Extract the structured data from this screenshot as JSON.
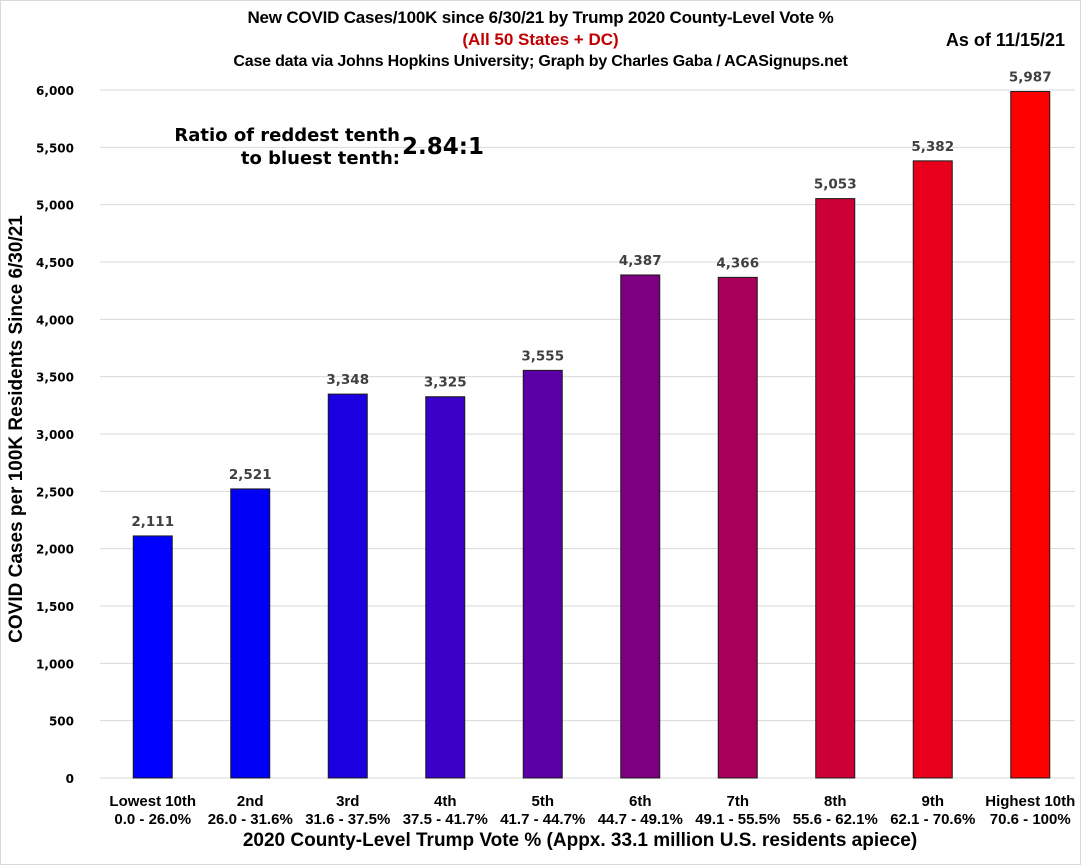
{
  "chart_data": {
    "type": "bar",
    "title": "New COVID Cases/100K since 6/30/21 by Trump 2020 County-Level Vote %",
    "subtitle": "(All 50 States + DC)",
    "source": "Case data via Johns Hopkins University; Graph by Charles Gaba / ACASignups.net",
    "as_of": "As of 11/15/21",
    "xlabel": "2020 County-Level Trump Vote % (Appx. 33.1 million U.S. residents apiece)",
    "ylabel": "COVID Cases per 100K Residents Since 6/30/21",
    "ylim": [
      0,
      6000
    ],
    "yticks": [
      0,
      500,
      1000,
      1500,
      2000,
      2500,
      3000,
      3500,
      4000,
      4500,
      5000,
      5500,
      6000
    ],
    "ytick_labels": [
      "0",
      "500",
      "1,000",
      "1,500",
      "2,000",
      "2,500",
      "3,000",
      "3,500",
      "4,000",
      "4,500",
      "5,000",
      "5,500",
      "6,000"
    ],
    "grid": true,
    "legend": "none",
    "categories": [
      "Lowest 10th",
      "2nd",
      "3rd",
      "4th",
      "5th",
      "6th",
      "7th",
      "8th",
      "9th",
      "Highest 10th"
    ],
    "category_ranges": [
      "0.0 - 26.0%",
      "26.0 - 31.6%",
      "31.6 - 37.5%",
      "37.5 - 41.7%",
      "41.7 - 44.7%",
      "44.7 - 49.1%",
      "49.1 - 55.5%",
      "55.6 - 62.1%",
      "62.1 - 70.6%",
      "70.6 - 100%"
    ],
    "values": [
      2111,
      2521,
      3348,
      3325,
      3555,
      4387,
      4366,
      5053,
      5382,
      5987
    ],
    "value_labels": [
      "2,111",
      "2,521",
      "3,348",
      "3,325",
      "3,555",
      "4,387",
      "4,366",
      "5,053",
      "5,382",
      "5,987"
    ],
    "bar_colors": [
      "#0000ff",
      "#0000f6",
      "#1a00e0",
      "#3a00c8",
      "#5a00a6",
      "#7c0080",
      "#a8005a",
      "#cc0034",
      "#e8001a",
      "#ff0000"
    ],
    "annotation": {
      "label_line1": "Ratio of reddest tenth",
      "label_line2": "to bluest tenth:",
      "value": "2.84:1"
    }
  }
}
